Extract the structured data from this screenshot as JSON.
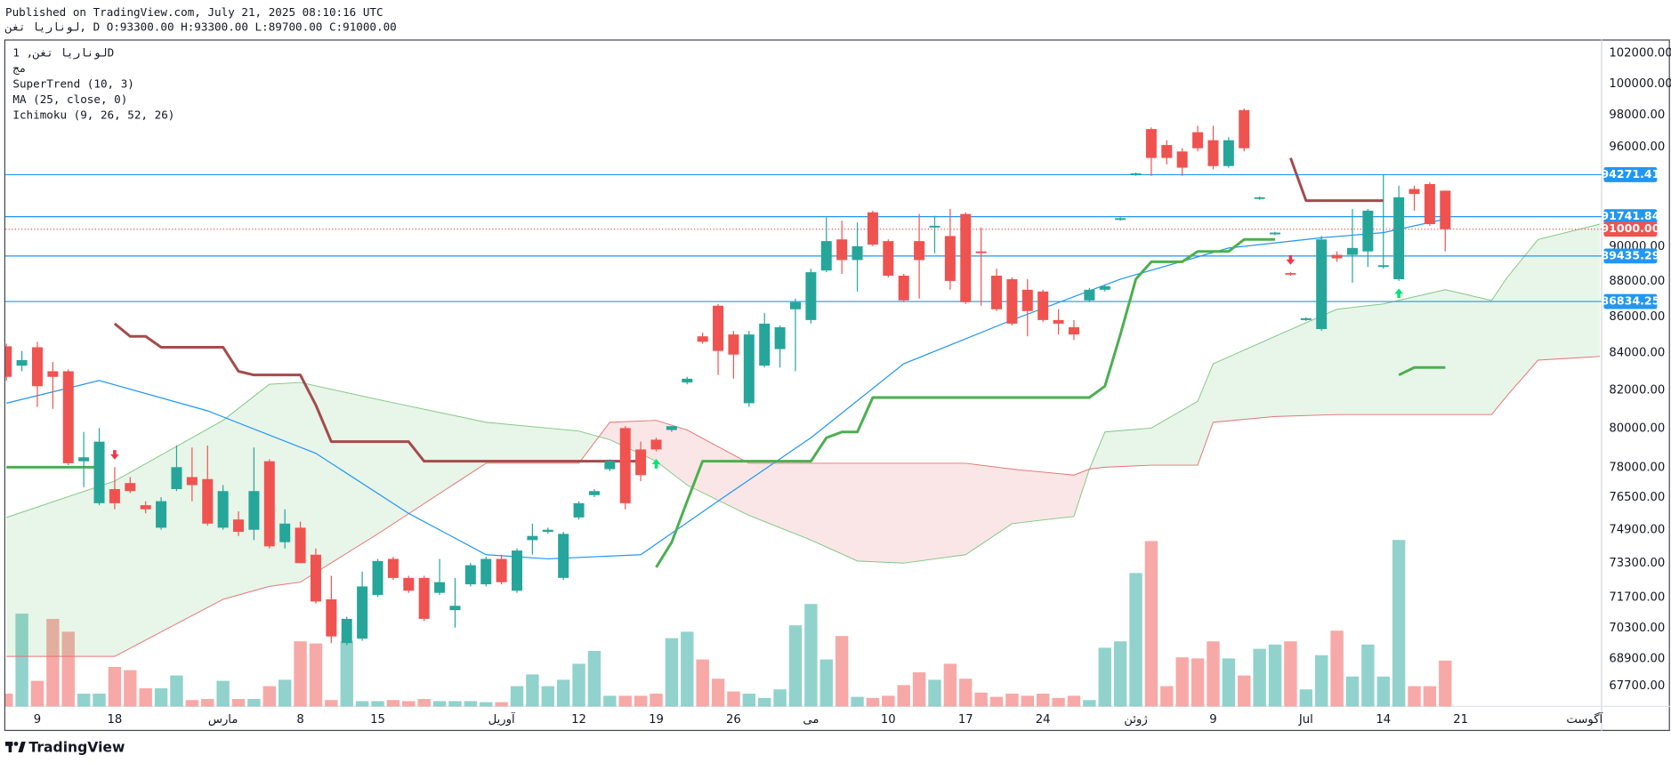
{
  "header": {
    "published": "Published on TradingView.com, July 21, 2025 08:10:16 UTC",
    "symbol_line": "لوناریا تغن, D O:93300.00 H:93300.00 L:89700.00 C:91000.00"
  },
  "chart_data": {
    "type": "candlestick",
    "legend": [
      "لوناریا تغن, 1D",
      "مج",
      "SuperTrend (10, 3)",
      "MA (25, close, 0)",
      "Ichimoku (9, 26, 52, 26)"
    ],
    "categories": [
      null,
      null,
      "9",
      null,
      null,
      null,
      null,
      "18",
      null,
      null,
      null,
      null,
      null,
      null,
      "مارس",
      null,
      null,
      null,
      null,
      "8",
      null,
      null,
      null,
      null,
      "15",
      null,
      null,
      null,
      null,
      null,
      null,
      null,
      "آوریل",
      null,
      null,
      null,
      null,
      "12",
      null,
      null,
      null,
      null,
      "19",
      null,
      null,
      null,
      null,
      "26",
      null,
      null,
      null,
      null,
      "می",
      null,
      null,
      null,
      null,
      "10",
      null,
      null,
      null,
      null,
      "17",
      null,
      null,
      null,
      null,
      "24",
      null,
      null,
      null,
      null,
      null,
      "ژوئن",
      null,
      null,
      null,
      null,
      "9",
      null,
      null,
      null,
      null,
      null,
      "Jul",
      null,
      null,
      null,
      null,
      "14",
      null,
      null,
      null,
      null,
      "21",
      null,
      null,
      null,
      null,
      null,
      null,
      null,
      "آگوست",
      null
    ],
    "open": [
      84350,
      83300,
      84300,
      83000,
      83000,
      78300,
      76200,
      76900,
      77200,
      76100,
      75000,
      76900,
      77500,
      77400,
      75000,
      75400,
      74900,
      78300,
      74300,
      75000,
      73700,
      71600,
      69600,
      69800,
      71800,
      73500,
      72600,
      72600,
      71900,
      71100,
      72300,
      72300,
      73500,
      72000,
      74400,
      74800,
      72600,
      75500,
      76600,
      77900,
      80000,
      78900,
      79400,
      79900,
      82400,
      84900,
      86600,
      85000,
      81300,
      83300,
      84200,
      86400,
      85800,
      88600,
      90400,
      89200,
      92000,
      90300,
      88300,
      90300,
      91100,
      90600,
      91900,
      89700,
      88300,
      88100,
      87500,
      87400,
      85800,
      85400,
      86900,
      87500,
      91550,
      94250,
      97100,
      96100,
      95700,
      96900,
      96400,
      94800,
      98300,
      92800,
      90700,
      88450,
      85800,
      85300,
      89500,
      89500,
      89700,
      88800,
      88100,
      93400,
      93700,
      93300,
      null,
      null,
      null,
      null,
      null,
      null,
      null,
      null,
      null,
      null
    ],
    "high": [
      84500,
      84100,
      84600,
      83500,
      83100,
      79800,
      80000,
      78000,
      77500,
      76300,
      76500,
      79100,
      79000,
      79100,
      77100,
      75800,
      79000,
      78400,
      75900,
      75300,
      74000,
      72700,
      70800,
      72900,
      73500,
      73600,
      72700,
      72700,
      73500,
      72600,
      73300,
      73600,
      73700,
      74000,
      75200,
      75000,
      74800,
      76300,
      76900,
      78400,
      80100,
      79300,
      79500,
      80100,
      82700,
      85100,
      86700,
      85200,
      85200,
      86200,
      85500,
      87000,
      88700,
      91700,
      91500,
      91400,
      92100,
      90400,
      88400,
      91900,
      91800,
      92200,
      92000,
      91100,
      88700,
      88200,
      88100,
      87500,
      86400,
      85800,
      87600,
      87800,
      91700,
      94400,
      97200,
      96400,
      95900,
      97300,
      97300,
      96600,
      98400,
      92950,
      90850,
      88500,
      85950,
      90600,
      89700,
      92200,
      92200,
      94300,
      93600,
      93600,
      93800,
      93300,
      null,
      null,
      null,
      null,
      null,
      null,
      null,
      null,
      null,
      null
    ],
    "low": [
      82500,
      83000,
      81100,
      81000,
      78100,
      77000,
      76100,
      75900,
      76700,
      75700,
      74900,
      76800,
      76300,
      75100,
      74900,
      74600,
      74400,
      74000,
      74000,
      73300,
      71400,
      69600,
      69500,
      69700,
      71700,
      72500,
      71900,
      70600,
      71800,
      70300,
      72200,
      72200,
      72300,
      71900,
      73700,
      74700,
      72500,
      75400,
      76500,
      77800,
      75900,
      77300,
      78800,
      79800,
      82300,
      84500,
      82800,
      82600,
      81100,
      83200,
      83200,
      83000,
      85600,
      88500,
      88400,
      87400,
      90000,
      88200,
      86800,
      87000,
      89600,
      87500,
      86700,
      86600,
      86300,
      85500,
      84900,
      85700,
      85000,
      84700,
      86800,
      87400,
      91500,
      94200,
      94200,
      94900,
      94200,
      95700,
      94600,
      94700,
      95700,
      92750,
      90650,
      88300,
      85750,
      85200,
      89100,
      87900,
      88800,
      88700,
      88000,
      92100,
      91200,
      89700,
      null,
      null,
      null,
      null,
      null,
      null,
      null,
      null,
      null,
      null
    ],
    "close": [
      82700,
      83600,
      82200,
      82700,
      78200,
      78500,
      79300,
      76200,
      76800,
      75900,
      76300,
      78000,
      77100,
      75200,
      76800,
      74800,
      76800,
      74100,
      75200,
      73300,
      71500,
      69900,
      70700,
      72200,
      73400,
      72600,
      72000,
      70700,
      72400,
      71300,
      73200,
      73500,
      72400,
      73900,
      74600,
      74900,
      74700,
      76200,
      76800,
      78300,
      76200,
      77600,
      78900,
      80100,
      82600,
      84600,
      84100,
      83900,
      85000,
      85600,
      85400,
      86800,
      88500,
      90300,
      89200,
      90000,
      90100,
      88300,
      86900,
      89200,
      91200,
      88000,
      86800,
      89600,
      86400,
      85600,
      86300,
      85800,
      85600,
      85000,
      87500,
      87700,
      91650,
      94350,
      95300,
      95300,
      94700,
      95900,
      94800,
      96400,
      95900,
      92900,
      90800,
      88400,
      85900,
      90400,
      89300,
      89900,
      92100,
      88900,
      92900,
      93100,
      91300,
      91000,
      null,
      null,
      null,
      null,
      null,
      null,
      null,
      null,
      null,
      null
    ],
    "volume": [
      12,
      87,
      24,
      82,
      70,
      12,
      12,
      37,
      34,
      17,
      17,
      29,
      6,
      7,
      24,
      7,
      7,
      19,
      25,
      61,
      59,
      6,
      61,
      5,
      5,
      6,
      5,
      7,
      5,
      5,
      5,
      4,
      4,
      19,
      30,
      19,
      25,
      40,
      52,
      10,
      10,
      10,
      12,
      64,
      70,
      44,
      26,
      14,
      12,
      8,
      16,
      76,
      96,
      44,
      66,
      9,
      8,
      10,
      20,
      32,
      25,
      40,
      26,
      13,
      9,
      12,
      10,
      12,
      8,
      10,
      6,
      55,
      61,
      125,
      155,
      19,
      46,
      45,
      61,
      45,
      29,
      54,
      58,
      61,
      16,
      48,
      71,
      28,
      58,
      28,
      156,
      19,
      19,
      43,
      null,
      null,
      null,
      null,
      null,
      null,
      null,
      null,
      null,
      null
    ],
    "up_color": "#26a69a",
    "down_color": "#ef5350",
    "y_scale": "log",
    "ylim": [
      66800,
      102900
    ],
    "yticks": [
      {
        "value": 102000,
        "label": "102000.00"
      },
      {
        "value": 100000,
        "label": "100000.00"
      },
      {
        "value": 98000,
        "label": "98000.00"
      },
      {
        "value": 96000,
        "label": "96000.00"
      },
      {
        "value": 90000,
        "label": "90000.00"
      },
      {
        "value": 88000,
        "label": "88000.00"
      },
      {
        "value": 86000,
        "label": "86000.00"
      },
      {
        "value": 84000,
        "label": "84000.00"
      },
      {
        "value": 82000,
        "label": "82000.00"
      },
      {
        "value": 80000,
        "label": "80000.00"
      },
      {
        "value": 78000,
        "label": "78000.00"
      },
      {
        "value": 76500,
        "label": "76500.00"
      },
      {
        "value": 74900,
        "label": "74900.00"
      },
      {
        "value": 73300,
        "label": "73300.00"
      },
      {
        "value": 71700,
        "label": "71700.00"
      },
      {
        "value": 70300,
        "label": "70300.00"
      },
      {
        "value": 68900,
        "label": "68900.00"
      },
      {
        "value": 67700,
        "label": "67700.00"
      }
    ],
    "grid": false,
    "supertrend": {
      "up": {
        "color": "#4caf50",
        "values": [
          78000,
          78000,
          78000,
          78000,
          78000,
          78000,
          78000,
          null,
          null,
          null,
          null,
          null,
          null,
          null,
          null,
          null,
          null,
          null,
          null,
          null,
          null,
          null,
          null,
          null,
          null,
          null,
          null,
          null,
          null,
          null,
          null,
          null,
          null,
          null,
          null,
          null,
          null,
          null,
          null,
          null,
          null,
          null,
          73100,
          74300,
          76300,
          78300,
          78300,
          78300,
          78300,
          78300,
          78300,
          78300,
          78300,
          79500,
          79800,
          79800,
          81600,
          81600,
          81600,
          81600,
          81600,
          81600,
          81600,
          81600,
          81600,
          81600,
          81600,
          81600,
          81600,
          81600,
          81600,
          82200,
          85000,
          88100,
          89100,
          89100,
          89100,
          89700,
          89700,
          89700,
          90400,
          90400,
          90400,
          null,
          null,
          null,
          null,
          null,
          null,
          null,
          82800,
          83200,
          83200,
          83200,
          null,
          null,
          null,
          null,
          null,
          null,
          null,
          null,
          null,
          null
        ]
      },
      "down": {
        "color": "#a44b4b",
        "values": [
          null,
          null,
          null,
          null,
          null,
          null,
          null,
          85600,
          84900,
          84900,
          84300,
          84300,
          84300,
          84300,
          84300,
          83000,
          82800,
          82800,
          82800,
          82800,
          81200,
          79300,
          79300,
          79300,
          79300,
          79300,
          79300,
          78300,
          78300,
          78300,
          78300,
          78300,
          78300,
          78300,
          78300,
          78300,
          78300,
          78300,
          78300,
          78300,
          78300,
          78300,
          null,
          null,
          null,
          null,
          null,
          null,
          null,
          null,
          null,
          null,
          null,
          null,
          null,
          null,
          null,
          null,
          null,
          null,
          null,
          null,
          null,
          null,
          null,
          null,
          null,
          null,
          null,
          null,
          null,
          null,
          null,
          null,
          null,
          null,
          null,
          null,
          null,
          null,
          null,
          null,
          null,
          95300,
          92700,
          92700,
          92700,
          92700,
          92700,
          92700,
          null,
          null,
          null,
          null,
          null,
          null,
          null,
          null,
          null,
          null,
          null,
          null,
          null,
          null
        ]
      },
      "buy_color": "#00e676",
      "sell_color": "#f23645",
      "buy_signals": [
        42,
        90
      ],
      "sell_signals": [
        7,
        83
      ]
    },
    "ma": {
      "color": "#2196f3",
      "x": [
        0,
        6,
        13,
        20,
        26,
        31,
        35,
        41,
        46,
        52,
        58,
        65,
        72,
        79,
        85,
        89,
        93
      ],
      "values": [
        81300,
        82500,
        80900,
        78700,
        75700,
        73700,
        73500,
        73700,
        76300,
        79500,
        83400,
        85800,
        88100,
        89900,
        90500,
        90800,
        91600
      ]
    },
    "ichimoku": {
      "x": [
        0,
        7,
        14,
        17,
        19,
        24,
        31,
        37,
        39,
        42,
        44,
        48,
        52,
        55,
        58,
        62,
        65,
        69,
        70,
        71,
        74,
        77,
        78,
        82,
        86,
        89,
        93,
        96,
        97,
        99,
        103
      ],
      "span_a": {
        "color": "#81c784",
        "values": [
          75500,
          77300,
          80400,
          82300,
          82400,
          81500,
          80300,
          79850,
          79400,
          78300,
          77100,
          75600,
          74400,
          73400,
          73300,
          73700,
          75200,
          75550,
          77900,
          79800,
          80000,
          81400,
          83400,
          84900,
          86400,
          86700,
          87500,
          86900,
          88200,
          90400,
          91300
        ]
      },
      "span_b": {
        "color": "#e57373",
        "values": [
          69000,
          69000,
          71600,
          72200,
          72400,
          74700,
          78200,
          78200,
          80300,
          80400,
          79900,
          78200,
          78200,
          78200,
          78200,
          78200,
          77900,
          77600,
          77900,
          78000,
          78100,
          78100,
          80300,
          80600,
          80700,
          80700,
          80700,
          80700,
          81700,
          83600,
          83800
        ]
      }
    },
    "levels": [
      {
        "value": 94271.41,
        "label": "94271.41",
        "color": "#2196f3"
      },
      {
        "value": 91741.84,
        "label": "91741.84",
        "color": "#2196f3"
      },
      {
        "value": 89435.29,
        "label": "89435.29",
        "color": "#2196f3"
      },
      {
        "value": 86834.25,
        "label": "86834.25",
        "color": "#2196f3"
      }
    ],
    "last_price": {
      "value": 91000,
      "label": "91000.00",
      "color": "#ef5350"
    }
  },
  "footer": {
    "brand": "TradingView"
  }
}
